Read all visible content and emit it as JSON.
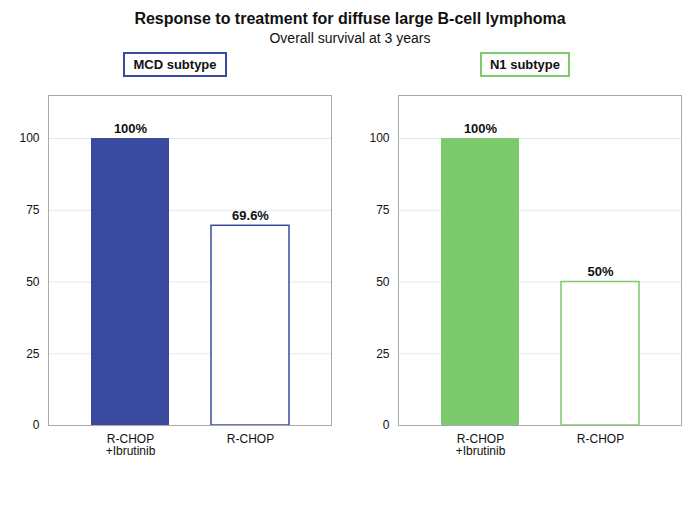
{
  "title": "Response to treatment for diffuse large B-cell lymphoma",
  "subtitle": "Overall survival at 3 years",
  "chart_data": [
    {
      "type": "bar",
      "title": "MCD subtype",
      "categories": [
        "R-CHOP\n+Ibrutinib",
        "R-CHOP"
      ],
      "values": [
        100,
        69.6
      ],
      "value_labels": [
        "100%",
        "69.6%"
      ],
      "data_labels": true,
      "color": "#3a4a9f",
      "ylim": [
        0,
        115
      ],
      "yticks": [
        0,
        25,
        50,
        75,
        100
      ],
      "grid": true
    },
    {
      "type": "bar",
      "title": "N1 subtype",
      "categories": [
        "R-CHOP\n+Ibrutinib",
        "R-CHOP"
      ],
      "values": [
        100,
        50
      ],
      "value_labels": [
        "100%",
        "50%"
      ],
      "data_labels": true,
      "color": "#7dc96e",
      "ylim": [
        0,
        115
      ],
      "yticks": [
        0,
        25,
        50,
        75,
        100
      ],
      "grid": true
    }
  ]
}
